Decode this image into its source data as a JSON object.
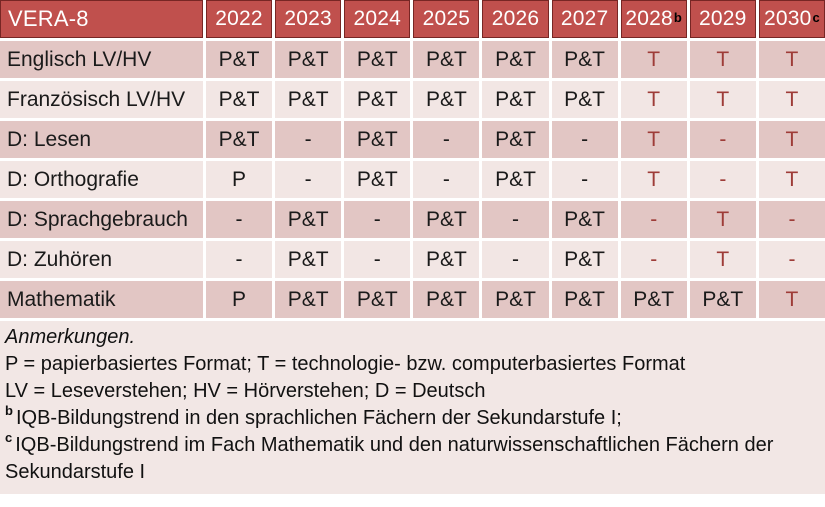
{
  "colors": {
    "header-bg": "#C0504D",
    "header-border": "#772624",
    "row-dark": "#E2C6C4",
    "row-light": "#F2E6E4",
    "accent-red": "#9E3C38",
    "notes-bg": "#F2E7E5"
  },
  "table": {
    "title": "VERA-8",
    "columns": [
      {
        "label": "2022",
        "sup": ""
      },
      {
        "label": "2023",
        "sup": ""
      },
      {
        "label": "2024",
        "sup": ""
      },
      {
        "label": "2025",
        "sup": ""
      },
      {
        "label": "2026",
        "sup": ""
      },
      {
        "label": "2027",
        "sup": ""
      },
      {
        "label": "2028",
        "sup": "b"
      },
      {
        "label": "2029",
        "sup": ""
      },
      {
        "label": "2030",
        "sup": "c"
      }
    ],
    "rows": [
      {
        "label": "Englisch LV/HV",
        "shade": "dark",
        "values": [
          "P&T",
          "P&T",
          "P&T",
          "P&T",
          "P&T",
          "P&T",
          "T",
          "T",
          "T"
        ],
        "red": [
          false,
          false,
          false,
          false,
          false,
          false,
          true,
          true,
          true
        ]
      },
      {
        "label": "Französisch LV/HV",
        "shade": "light",
        "values": [
          "P&T",
          "P&T",
          "P&T",
          "P&T",
          "P&T",
          "P&T",
          "T",
          "T",
          "T"
        ],
        "red": [
          false,
          false,
          false,
          false,
          false,
          false,
          true,
          true,
          true
        ]
      },
      {
        "label": "D: Lesen",
        "shade": "dark",
        "values": [
          "P&T",
          "-",
          "P&T",
          "-",
          "P&T",
          "-",
          "T",
          "-",
          "T"
        ],
        "red": [
          false,
          false,
          false,
          false,
          false,
          false,
          true,
          true,
          true
        ]
      },
      {
        "label": "D: Orthografie",
        "shade": "light",
        "values": [
          "P",
          "-",
          "P&T",
          "-",
          "P&T",
          "-",
          "T",
          "-",
          "T"
        ],
        "red": [
          false,
          false,
          false,
          false,
          false,
          false,
          true,
          true,
          true
        ]
      },
      {
        "label": "D: Sprachgebrauch",
        "shade": "dark",
        "values": [
          "-",
          "P&T",
          "-",
          "P&T",
          "-",
          "P&T",
          "-",
          "T",
          "-"
        ],
        "red": [
          false,
          false,
          false,
          false,
          false,
          false,
          true,
          true,
          true
        ]
      },
      {
        "label": "D: Zuhören",
        "shade": "light",
        "values": [
          "-",
          "P&T",
          "-",
          "P&T",
          "-",
          "P&T",
          "-",
          "T",
          "-"
        ],
        "red": [
          false,
          false,
          false,
          false,
          false,
          false,
          true,
          true,
          true
        ]
      },
      {
        "label": "Mathematik",
        "shade": "dark",
        "values": [
          "P",
          "P&T",
          "P&T",
          "P&T",
          "P&T",
          "P&T",
          "P&T",
          "P&T",
          "T"
        ],
        "red": [
          false,
          false,
          false,
          false,
          false,
          false,
          false,
          false,
          true
        ]
      }
    ]
  },
  "notes": {
    "heading": "Anmerkungen.",
    "line_formats": "P = papierbasiertes Format; T = technologie- bzw. computerbasiertes Format",
    "line_abbrev": "LV = Leseverstehen; HV = Hörverstehen; D = Deutsch",
    "footnote_b": {
      "sup": "b",
      "text": "IQB-Bildungstrend in den sprachlichen Fächern der Sekundarstufe I;"
    },
    "footnote_c": {
      "sup": "c",
      "text": "IQB-Bildungstrend im Fach Mathematik und den naturwissenschaftlichen Fächern der Sekundarstufe I"
    }
  }
}
